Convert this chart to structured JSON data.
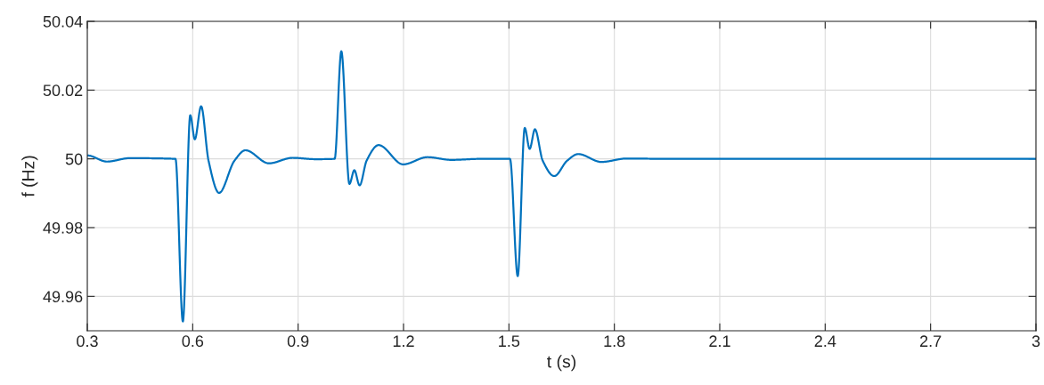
{
  "chart_data": {
    "type": "line",
    "xlabel": "t (s)",
    "ylabel": "f (Hz)",
    "xlim": [
      0.3,
      3
    ],
    "ylim": [
      49.95,
      50.04
    ],
    "xticks": [
      0.3,
      0.6,
      0.9,
      1.2,
      1.5,
      1.8,
      2.1,
      2.4,
      2.7,
      3
    ],
    "yticks": [
      49.96,
      49.98,
      50,
      50.02,
      50.04
    ],
    "grid": true,
    "line_style": "solid",
    "series": [
      {
        "color": "#0072bd",
        "x": [
          0.3,
          0.356,
          0.42,
          0.551,
          0.572,
          0.593,
          0.606,
          0.624,
          0.645,
          0.675,
          0.719,
          0.75,
          0.817,
          0.884,
          0.95,
          1.004,
          1.023,
          1.046,
          1.06,
          1.075,
          1.095,
          1.129,
          1.199,
          1.268,
          1.336,
          1.42,
          1.503,
          1.525,
          1.545,
          1.559,
          1.574,
          1.596,
          1.629,
          1.666,
          1.697,
          1.763,
          1.835,
          1.95,
          2.5,
          3
        ],
        "values": [
          50.001,
          49.9992,
          50.0002,
          50.0,
          49.9527,
          50.0127,
          50.0057,
          50.0153,
          49.9995,
          49.9901,
          49.9995,
          50.0025,
          49.9987,
          50.0003,
          49.9999,
          50.0,
          50.0313,
          49.9927,
          49.9967,
          49.9923,
          49.9995,
          50.004,
          49.9984,
          50.0005,
          49.9997,
          50.0,
          50.0,
          49.9659,
          50.009,
          50.0029,
          50.0086,
          49.9995,
          49.995,
          49.9995,
          50.0014,
          49.9991,
          50.0001,
          50.0,
          50.0,
          50.0
        ]
      }
    ]
  }
}
